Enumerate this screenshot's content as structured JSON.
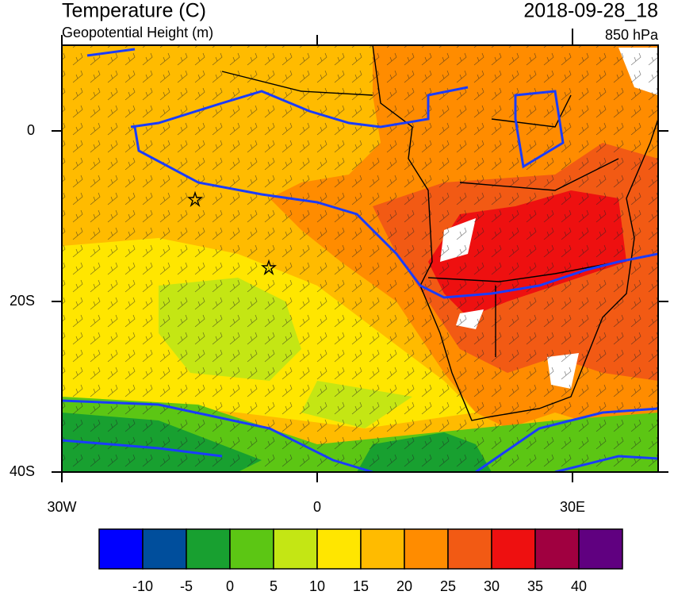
{
  "header": {
    "title": "Temperature (C)",
    "subtitle": "Geopotential Height (m)",
    "date": "2018-09-28_18",
    "level": "850 hPa"
  },
  "map": {
    "xticks": [
      {
        "value": -30,
        "label": "30W"
      },
      0,
      {
        "value": 30,
        "label": "30E"
      }
    ],
    "yticks": [
      0,
      {
        "value": -20,
        "label": "20S"
      },
      {
        "value": -40,
        "label": "40S"
      }
    ]
  },
  "colorbar": {
    "colors": [
      "#0000ff",
      "#004e9c",
      "#18a030",
      "#5cc614",
      "#c4e614",
      "#ffe600",
      "#ffbb00",
      "#ff8c00",
      "#f25a14",
      "#ee1010",
      "#a00040",
      "#600080"
    ],
    "ticks": [
      -10,
      -5,
      0,
      5,
      10,
      15,
      20,
      25,
      30,
      35,
      40
    ]
  }
}
